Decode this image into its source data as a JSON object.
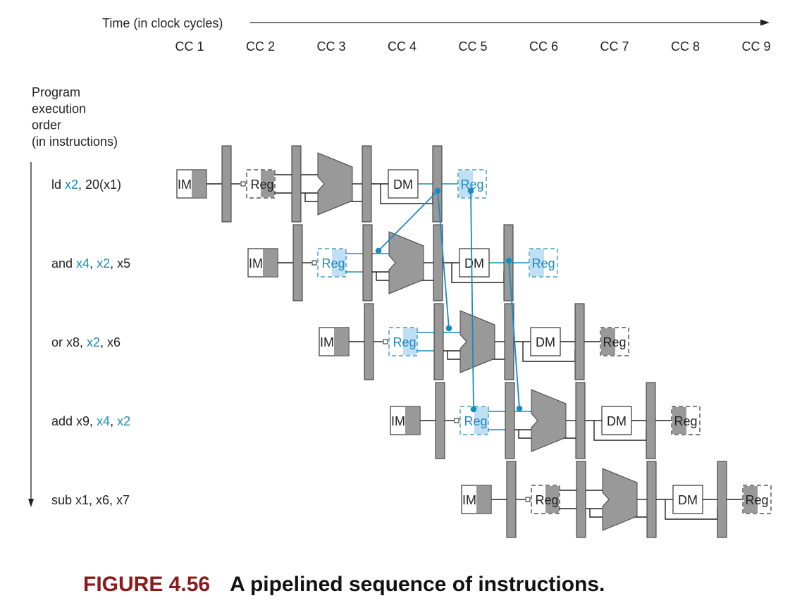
{
  "time_label": "Time (in clock cycles)",
  "cycles": [
    "CC 1",
    "CC 2",
    "CC 3",
    "CC 4",
    "CC 5",
    "CC 6",
    "CC 7",
    "CC 8",
    "CC 9"
  ],
  "order_label": [
    "Program",
    "execution",
    "order",
    "(in instructions)"
  ],
  "instructions": [
    {
      "parts": [
        {
          "t": "ld ",
          "hl": false
        },
        {
          "t": "x2",
          "hl": true
        },
        {
          "t": ", 20(x1)",
          "hl": false
        }
      ],
      "start_cycle": 1,
      "forward": {
        "Reg": false,
        "DM": false,
        "WB": true
      }
    },
    {
      "parts": [
        {
          "t": "and ",
          "hl": false
        },
        {
          "t": "x4",
          "hl": true
        },
        {
          "t": ", ",
          "hl": false
        },
        {
          "t": "x2",
          "hl": true
        },
        {
          "t": ", x5",
          "hl": false
        }
      ],
      "start_cycle": 2,
      "forward": {
        "Reg": true,
        "DM": false,
        "WB": true
      }
    },
    {
      "parts": [
        {
          "t": "or x8, ",
          "hl": false
        },
        {
          "t": "x2",
          "hl": true
        },
        {
          "t": ", x6",
          "hl": false
        }
      ],
      "start_cycle": 3,
      "forward": {
        "Reg": true,
        "DM": false,
        "WB": false
      }
    },
    {
      "parts": [
        {
          "t": "add x9, ",
          "hl": false
        },
        {
          "t": "x4",
          "hl": true
        },
        {
          "t": ", ",
          "hl": false
        },
        {
          "t": "x2",
          "hl": true
        }
      ],
      "start_cycle": 4,
      "forward": {
        "Reg": true,
        "DM": false,
        "WB": false
      }
    },
    {
      "parts": [
        {
          "t": "sub x1, x6, x7",
          "hl": false
        }
      ],
      "start_cycle": 5,
      "forward": {
        "Reg": false,
        "DM": false,
        "WB": false
      }
    }
  ],
  "stages": {
    "if": "IM",
    "id": "Reg",
    "mem": "DM",
    "wb": "Reg"
  },
  "colors": {
    "highlight": "#1a8bbf",
    "highlight_fill": "#bfe0f4",
    "gray": "#999999",
    "line": "#222222",
    "caption_number": "#8b1a1a"
  },
  "caption": {
    "number": "FIGURE 4.56",
    "text": "A pipelined sequence of instructions."
  }
}
